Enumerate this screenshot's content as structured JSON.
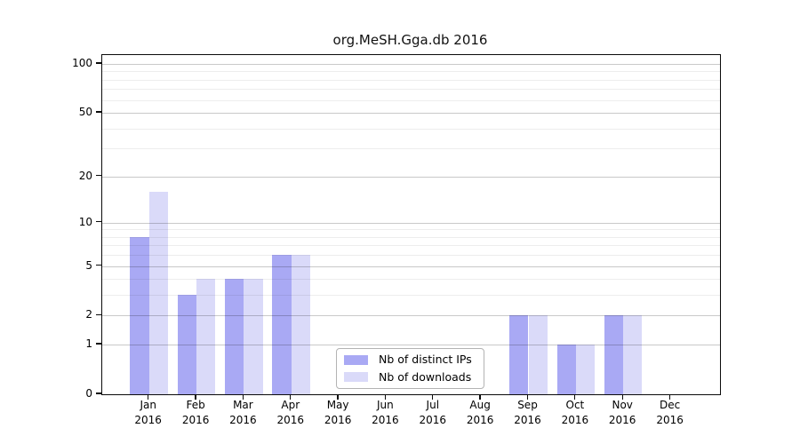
{
  "window": {
    "background": "#ffffff"
  },
  "chart_data": {
    "type": "bar",
    "title": "org.MeSH.Gga.db 2016",
    "categories": [
      {
        "month": "Jan",
        "year": "2016"
      },
      {
        "month": "Feb",
        "year": "2016"
      },
      {
        "month": "Mar",
        "year": "2016"
      },
      {
        "month": "Apr",
        "year": "2016"
      },
      {
        "month": "May",
        "year": "2016"
      },
      {
        "month": "Jun",
        "year": "2016"
      },
      {
        "month": "Jul",
        "year": "2016"
      },
      {
        "month": "Aug",
        "year": "2016"
      },
      {
        "month": "Sep",
        "year": "2016"
      },
      {
        "month": "Oct",
        "year": "2016"
      },
      {
        "month": "Nov",
        "year": "2016"
      },
      {
        "month": "Dec",
        "year": "2016"
      }
    ],
    "series": [
      {
        "name": "Nb of distinct IPs",
        "color": "#a9a9f4",
        "values": [
          8,
          3,
          4,
          6,
          0,
          0,
          0,
          0,
          2,
          1,
          2,
          0
        ]
      },
      {
        "name": "Nb of downloads",
        "color": "#dadaf9",
        "values": [
          16,
          4,
          4,
          6,
          0,
          0,
          0,
          0,
          2,
          1,
          2,
          0
        ]
      }
    ],
    "y_axis": {
      "scale": "log1p",
      "ticks": [
        {
          "label": "100",
          "value": 100
        },
        {
          "label": "50",
          "value": 50
        },
        {
          "label": "20",
          "value": 20
        },
        {
          "label": "10",
          "value": 10
        },
        {
          "label": "5",
          "value": 5
        },
        {
          "label": "2",
          "value": 2
        },
        {
          "label": "1",
          "value": 1
        },
        {
          "label": "0",
          "value": 0
        }
      ],
      "minor_gridlines": [
        3,
        4,
        6,
        7,
        8,
        9,
        30,
        40,
        60,
        70,
        80,
        90
      ],
      "range_max": 113
    },
    "grid": "horizontal",
    "legend_position": "bottom-center"
  }
}
